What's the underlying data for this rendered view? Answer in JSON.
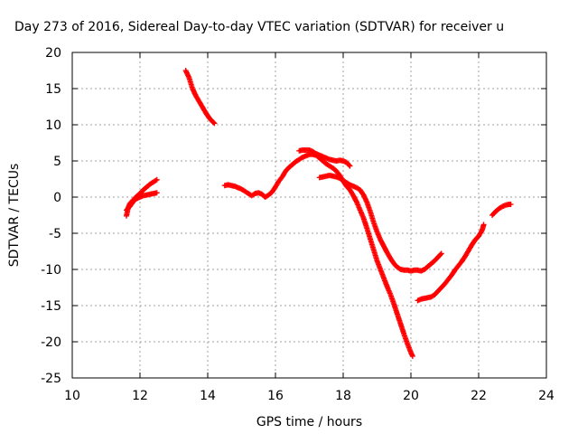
{
  "chart_data": {
    "type": "scatter",
    "title": "Day 273 of 2016, Sidereal Day-to-day VTEC variation (SDTVAR) for receiver u",
    "xlabel": "GPS time / hours",
    "ylabel": "SDTVAR / TECUs",
    "xlim": [
      10,
      24
    ],
    "ylim": [
      -25,
      20
    ],
    "xticks": [
      10,
      12,
      14,
      16,
      18,
      20,
      22,
      24
    ],
    "yticks": [
      20,
      15,
      10,
      5,
      0,
      -5,
      -10,
      -15,
      -20,
      -25
    ],
    "grid": true,
    "marker": "plus",
    "color": "#ff0000",
    "series": [
      {
        "values": [
          [
            11.6,
            -2.6
          ],
          [
            11.65,
            -1.5
          ],
          [
            11.7,
            -0.9
          ],
          [
            11.8,
            -0.4
          ],
          [
            11.9,
            0.1
          ],
          [
            12.0,
            0.5
          ],
          [
            12.1,
            1.0
          ],
          [
            12.2,
            1.4
          ],
          [
            12.3,
            1.8
          ],
          [
            12.4,
            2.1
          ],
          [
            12.5,
            2.4
          ]
        ]
      },
      {
        "values": [
          [
            11.6,
            -1.8
          ],
          [
            11.7,
            -1.3
          ],
          [
            11.8,
            -0.6
          ],
          [
            11.9,
            -0.2
          ],
          [
            12.0,
            0.0
          ],
          [
            12.1,
            0.2
          ],
          [
            12.2,
            0.3
          ],
          [
            12.3,
            0.4
          ],
          [
            12.4,
            0.5
          ],
          [
            12.5,
            0.6
          ]
        ]
      },
      {
        "values": [
          [
            13.35,
            17.5
          ],
          [
            13.45,
            16.5
          ],
          [
            13.55,
            15.0
          ],
          [
            13.65,
            14.0
          ],
          [
            13.75,
            13.2
          ],
          [
            13.85,
            12.4
          ],
          [
            13.95,
            11.6
          ],
          [
            14.05,
            10.9
          ],
          [
            14.15,
            10.4
          ],
          [
            14.2,
            10.2
          ]
        ]
      },
      {
        "values": [
          [
            14.5,
            1.6
          ],
          [
            14.6,
            1.7
          ],
          [
            14.7,
            1.6
          ],
          [
            14.8,
            1.5
          ],
          [
            14.9,
            1.3
          ],
          [
            15.0,
            1.1
          ],
          [
            15.1,
            0.8
          ],
          [
            15.2,
            0.5
          ],
          [
            15.3,
            0.2
          ],
          [
            15.4,
            0.5
          ],
          [
            15.5,
            0.6
          ],
          [
            15.6,
            0.4
          ],
          [
            15.7,
            0.0
          ],
          [
            15.8,
            0.3
          ],
          [
            15.9,
            0.7
          ],
          [
            16.0,
            1.4
          ],
          [
            16.1,
            2.2
          ],
          [
            16.2,
            2.8
          ],
          [
            16.3,
            3.6
          ],
          [
            16.4,
            4.1
          ],
          [
            16.5,
            4.5
          ],
          [
            16.6,
            4.9
          ],
          [
            16.7,
            5.2
          ],
          [
            16.8,
            5.5
          ],
          [
            16.9,
            5.7
          ],
          [
            17.0,
            5.9
          ],
          [
            17.1,
            5.9
          ],
          [
            17.2,
            5.8
          ],
          [
            17.3,
            5.4
          ],
          [
            17.4,
            5.0
          ],
          [
            17.5,
            4.6
          ],
          [
            17.6,
            4.3
          ],
          [
            17.7,
            4.0
          ],
          [
            17.8,
            3.6
          ],
          [
            17.9,
            3.0
          ],
          [
            18.0,
            2.2
          ],
          [
            18.1,
            1.5
          ],
          [
            18.2,
            1.0
          ],
          [
            18.3,
            0.2
          ],
          [
            18.4,
            -0.7
          ],
          [
            18.5,
            -1.8
          ],
          [
            18.6,
            -2.9
          ],
          [
            18.7,
            -4.3
          ],
          [
            18.8,
            -5.8
          ],
          [
            18.9,
            -7.3
          ],
          [
            19.0,
            -8.8
          ],
          [
            19.1,
            -10.0
          ],
          [
            19.2,
            -11.2
          ],
          [
            19.3,
            -12.4
          ],
          [
            19.4,
            -13.5
          ],
          [
            19.5,
            -14.8
          ],
          [
            19.6,
            -16.2
          ],
          [
            19.7,
            -17.6
          ],
          [
            19.8,
            -19.0
          ],
          [
            19.9,
            -20.3
          ],
          [
            20.0,
            -21.5
          ],
          [
            20.05,
            -22.0
          ]
        ]
      },
      {
        "values": [
          [
            16.7,
            6.4
          ],
          [
            16.8,
            6.5
          ],
          [
            16.9,
            6.5
          ],
          [
            17.0,
            6.5
          ],
          [
            17.1,
            6.3
          ],
          [
            17.2,
            6.0
          ],
          [
            17.3,
            5.8
          ],
          [
            17.4,
            5.6
          ],
          [
            17.5,
            5.4
          ],
          [
            17.6,
            5.2
          ],
          [
            17.7,
            5.1
          ],
          [
            17.8,
            5.0
          ],
          [
            17.9,
            5.1
          ],
          [
            18.0,
            5.0
          ],
          [
            18.1,
            4.8
          ],
          [
            18.2,
            4.3
          ]
        ]
      },
      {
        "values": [
          [
            17.3,
            2.7
          ],
          [
            17.4,
            2.8
          ],
          [
            17.5,
            2.9
          ],
          [
            17.6,
            3.0
          ],
          [
            17.7,
            2.9
          ],
          [
            17.8,
            2.8
          ],
          [
            17.9,
            2.6
          ],
          [
            18.0,
            2.3
          ],
          [
            18.1,
            2.0
          ],
          [
            18.2,
            1.7
          ],
          [
            18.3,
            1.5
          ],
          [
            18.4,
            1.3
          ],
          [
            18.5,
            1.0
          ],
          [
            18.6,
            0.3
          ],
          [
            18.7,
            -0.7
          ],
          [
            18.8,
            -2.0
          ],
          [
            18.9,
            -3.5
          ],
          [
            19.0,
            -4.8
          ],
          [
            19.1,
            -5.9
          ],
          [
            19.2,
            -6.8
          ],
          [
            19.3,
            -7.7
          ],
          [
            19.4,
            -8.5
          ],
          [
            19.5,
            -9.2
          ],
          [
            19.6,
            -9.7
          ],
          [
            19.7,
            -10.0
          ],
          [
            19.8,
            -10.1
          ],
          [
            19.9,
            -10.1
          ],
          [
            20.0,
            -10.2
          ],
          [
            20.1,
            -10.1
          ],
          [
            20.2,
            -10.1
          ],
          [
            20.3,
            -10.2
          ],
          [
            20.4,
            -10.0
          ],
          [
            20.5,
            -9.6
          ],
          [
            20.6,
            -9.2
          ],
          [
            20.7,
            -8.8
          ],
          [
            20.8,
            -8.3
          ],
          [
            20.9,
            -7.8
          ]
        ]
      },
      {
        "values": [
          [
            20.2,
            -14.3
          ],
          [
            20.3,
            -14.1
          ],
          [
            20.4,
            -14.0
          ],
          [
            20.5,
            -13.9
          ],
          [
            20.6,
            -13.8
          ],
          [
            20.7,
            -13.5
          ],
          [
            20.8,
            -13.0
          ],
          [
            20.9,
            -12.5
          ],
          [
            21.0,
            -12.0
          ],
          [
            21.1,
            -11.4
          ],
          [
            21.2,
            -10.8
          ],
          [
            21.3,
            -10.1
          ],
          [
            21.4,
            -9.5
          ],
          [
            21.5,
            -8.9
          ],
          [
            21.6,
            -8.2
          ],
          [
            21.7,
            -7.4
          ],
          [
            21.8,
            -6.6
          ],
          [
            21.9,
            -5.9
          ],
          [
            22.0,
            -5.4
          ],
          [
            22.1,
            -4.6
          ],
          [
            22.15,
            -3.8
          ]
        ]
      },
      {
        "values": [
          [
            22.4,
            -2.5
          ],
          [
            22.5,
            -2.0
          ],
          [
            22.6,
            -1.6
          ],
          [
            22.7,
            -1.3
          ],
          [
            22.8,
            -1.1
          ],
          [
            22.9,
            -1.0
          ],
          [
            22.95,
            -1.0
          ]
        ]
      }
    ]
  }
}
